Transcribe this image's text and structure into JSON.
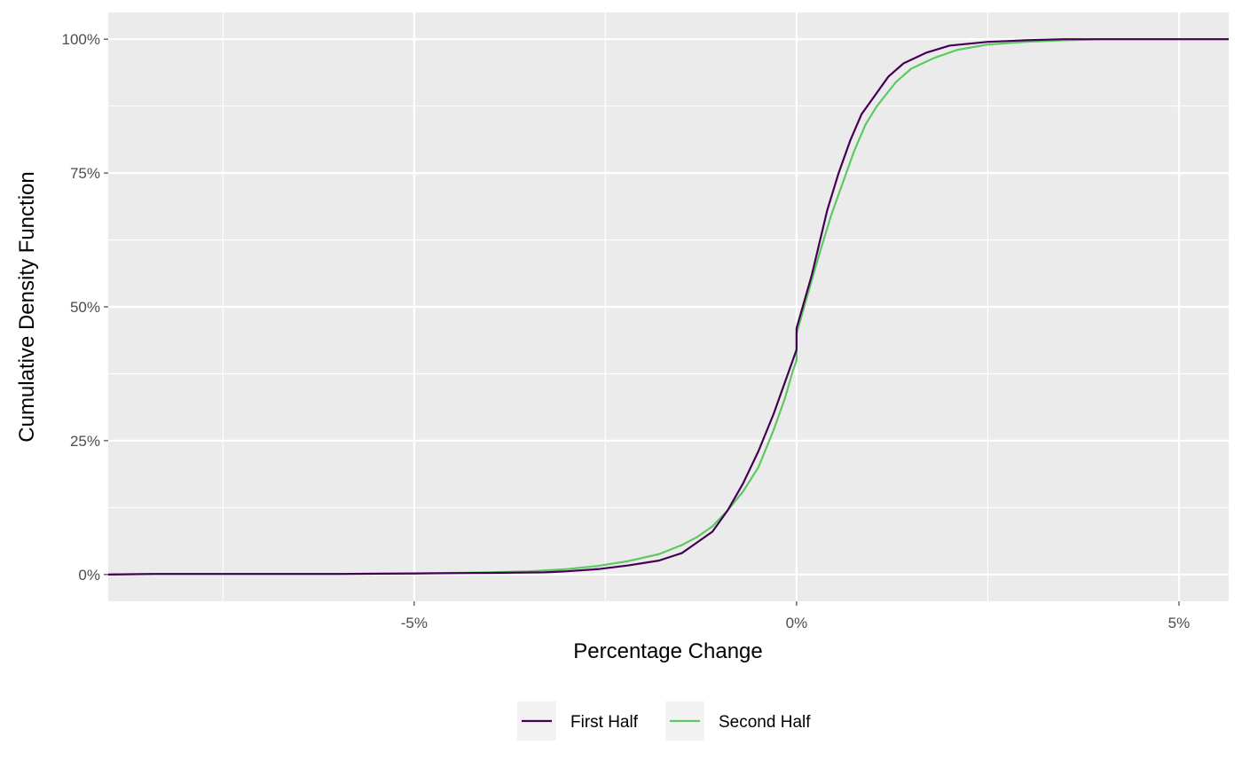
{
  "chart_data": {
    "type": "line",
    "xlabel": "Percentage Change",
    "ylabel": "Cumulative Density Function",
    "xlim": [
      -9,
      5.65
    ],
    "ylim": [
      -0.05,
      1.05
    ],
    "x_ticks": [
      -5,
      0,
      5
    ],
    "x_tick_labels": [
      "-5%",
      "0%",
      "5%"
    ],
    "y_ticks": [
      0,
      0.25,
      0.5,
      0.75,
      1.0
    ],
    "y_tick_labels": [
      "0%",
      "25%",
      "50%",
      "75%",
      "100%"
    ],
    "grid": true,
    "legend_position": "bottom",
    "series": [
      {
        "name": "First Half",
        "color": "#440154",
        "points": [
          [
            -9.0,
            0.0
          ],
          [
            -8.4,
            0.001
          ],
          [
            -6.0,
            0.001
          ],
          [
            -5.0,
            0.002
          ],
          [
            -4.0,
            0.003
          ],
          [
            -3.3,
            0.004
          ],
          [
            -3.0,
            0.006
          ],
          [
            -2.6,
            0.01
          ],
          [
            -2.2,
            0.017
          ],
          [
            -1.8,
            0.026
          ],
          [
            -1.5,
            0.04
          ],
          [
            -1.3,
            0.06
          ],
          [
            -1.1,
            0.08
          ],
          [
            -0.9,
            0.12
          ],
          [
            -0.7,
            0.17
          ],
          [
            -0.5,
            0.23
          ],
          [
            -0.3,
            0.3
          ],
          [
            -0.15,
            0.36
          ],
          [
            -0.05,
            0.4
          ],
          [
            0.0,
            0.42
          ],
          [
            0.0,
            0.46
          ],
          [
            0.1,
            0.51
          ],
          [
            0.2,
            0.56
          ],
          [
            0.3,
            0.62
          ],
          [
            0.4,
            0.68
          ],
          [
            0.55,
            0.75
          ],
          [
            0.7,
            0.81
          ],
          [
            0.85,
            0.86
          ],
          [
            1.0,
            0.89
          ],
          [
            1.2,
            0.93
          ],
          [
            1.4,
            0.955
          ],
          [
            1.7,
            0.975
          ],
          [
            2.0,
            0.988
          ],
          [
            2.5,
            0.995
          ],
          [
            3.0,
            0.998
          ],
          [
            3.5,
            1.0
          ],
          [
            5.65,
            1.0
          ]
        ]
      },
      {
        "name": "Second Half",
        "color": "#5ec962",
        "points": [
          [
            -9.0,
            0.0
          ],
          [
            -8.4,
            0.001
          ],
          [
            -6.0,
            0.001
          ],
          [
            -5.0,
            0.002
          ],
          [
            -4.0,
            0.004
          ],
          [
            -3.5,
            0.006
          ],
          [
            -3.0,
            0.01
          ],
          [
            -2.6,
            0.016
          ],
          [
            -2.2,
            0.025
          ],
          [
            -1.8,
            0.038
          ],
          [
            -1.5,
            0.055
          ],
          [
            -1.3,
            0.07
          ],
          [
            -1.1,
            0.09
          ],
          [
            -0.9,
            0.12
          ],
          [
            -0.7,
            0.155
          ],
          [
            -0.5,
            0.2
          ],
          [
            -0.3,
            0.27
          ],
          [
            -0.15,
            0.33
          ],
          [
            -0.05,
            0.38
          ],
          [
            0.0,
            0.4
          ],
          [
            0.0,
            0.45
          ],
          [
            0.1,
            0.5
          ],
          [
            0.2,
            0.55
          ],
          [
            0.3,
            0.6
          ],
          [
            0.45,
            0.67
          ],
          [
            0.6,
            0.73
          ],
          [
            0.75,
            0.79
          ],
          [
            0.9,
            0.84
          ],
          [
            1.05,
            0.875
          ],
          [
            1.3,
            0.92
          ],
          [
            1.5,
            0.945
          ],
          [
            1.8,
            0.965
          ],
          [
            2.1,
            0.98
          ],
          [
            2.5,
            0.99
          ],
          [
            3.0,
            0.995
          ],
          [
            3.5,
            0.998
          ],
          [
            4.0,
            1.0
          ],
          [
            5.65,
            1.0
          ]
        ]
      }
    ]
  }
}
